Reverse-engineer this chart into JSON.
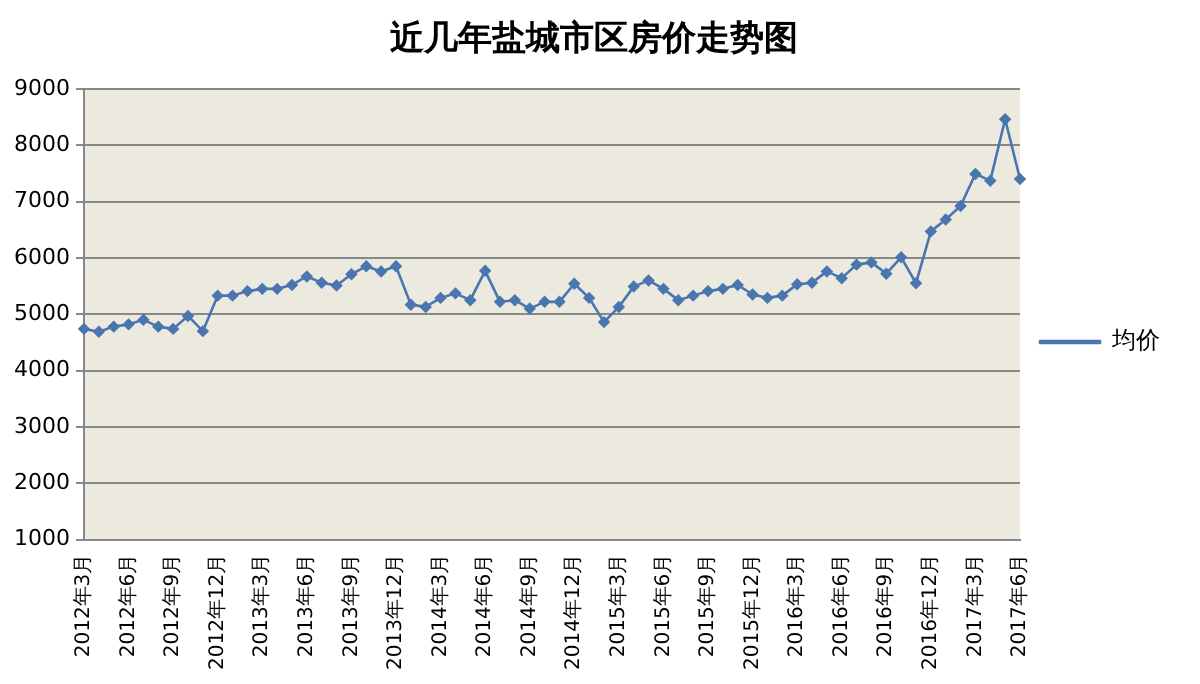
{
  "chart_data": {
    "type": "line",
    "title": "近几年盐城市区房价走势图",
    "categories": [
      "2012年3月",
      null,
      null,
      "2012年6月",
      null,
      null,
      "2012年9月",
      null,
      null,
      "2012年12月",
      null,
      null,
      "2013年3月",
      null,
      null,
      "2013年6月",
      null,
      null,
      "2013年9月",
      null,
      null,
      "2013年12月",
      null,
      null,
      "2014年3月",
      null,
      null,
      "2014年6月",
      null,
      null,
      "2014年9月",
      null,
      null,
      "2014年12月",
      null,
      null,
      "2015年3月",
      null,
      null,
      "2015年6月",
      null,
      null,
      "2015年9月",
      null,
      null,
      "2015年12月",
      null,
      null,
      "2016年3月",
      null,
      null,
      "2016年6月",
      null,
      null,
      "2016年9月",
      null,
      null,
      "2016年12月",
      null,
      null,
      "2017年3月",
      null,
      null,
      "2017年6月"
    ],
    "series": [
      {
        "name": "均价",
        "color": "#4a76b0",
        "values": [
          4740,
          4690,
          4780,
          4820,
          4900,
          4780,
          4740,
          4970,
          4700,
          5330,
          5330,
          5410,
          5450,
          5450,
          5520,
          5670,
          5560,
          5510,
          5710,
          5850,
          5760,
          5850,
          5170,
          5130,
          5290,
          5370,
          5250,
          5770,
          5220,
          5250,
          5100,
          5220,
          5220,
          5540,
          5290,
          4860,
          5130,
          5490,
          5600,
          5450,
          5250,
          5330,
          5410,
          5450,
          5520,
          5350,
          5290,
          5330,
          5530,
          5560,
          5760,
          5640,
          5880,
          5920,
          5720,
          6010,
          5550,
          6470,
          6680,
          6920,
          7490,
          7370,
          8460,
          7400
        ]
      }
    ],
    "ylim": [
      1000,
      9000
    ],
    "yticks": [
      1000,
      2000,
      3000,
      4000,
      5000,
      6000,
      7000,
      8000,
      9000
    ],
    "grid": "y",
    "legend": "right",
    "marker": "diamond",
    "line_style": "solid"
  }
}
